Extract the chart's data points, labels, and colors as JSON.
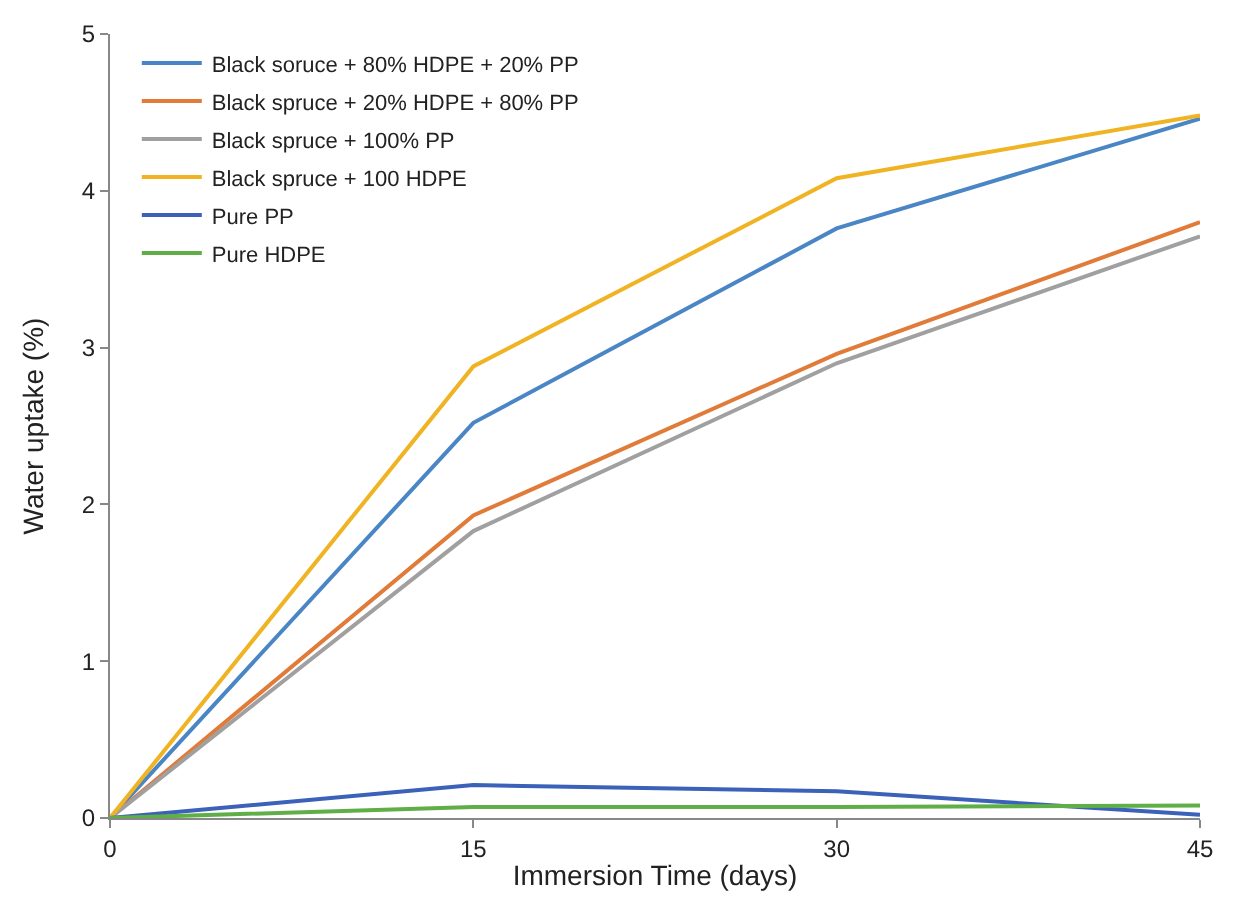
{
  "chart_data": {
    "type": "line",
    "xlabel": "Immersion Time (days)",
    "ylabel": "Water uptake (%)",
    "x": [
      0,
      15,
      30,
      45
    ],
    "xlim": [
      0,
      45
    ],
    "xticks": [
      0,
      15,
      30,
      45
    ],
    "ylim": [
      0,
      5
    ],
    "yticks": [
      0,
      1,
      2,
      3,
      4,
      5
    ],
    "legend": "top left",
    "marker": "none",
    "line_style": "solid",
    "series": [
      {
        "name": "Black soruce + 80% HDPE + 20% PP",
        "color": "#4a86c5",
        "values": [
          0,
          2.52,
          3.76,
          4.46
        ]
      },
      {
        "name": "Black spruce + 20% HDPE + 80% PP",
        "color": "#e07b39",
        "values": [
          0,
          1.93,
          2.96,
          3.8
        ]
      },
      {
        "name": "Black spruce + 100% PP",
        "color": "#a0a0a0",
        "values": [
          0,
          1.83,
          2.9,
          3.71
        ]
      },
      {
        "name": "Black spruce + 100 HDPE",
        "color": "#f0b323",
        "values": [
          0,
          2.88,
          4.08,
          4.48
        ]
      },
      {
        "name": "Pure PP",
        "color": "#3b62b8",
        "values": [
          0,
          0.21,
          0.17,
          0.02
        ]
      },
      {
        "name": "Pure HDPE",
        "color": "#5fae47",
        "values": [
          0,
          0.07,
          0.07,
          0.08
        ]
      }
    ]
  }
}
